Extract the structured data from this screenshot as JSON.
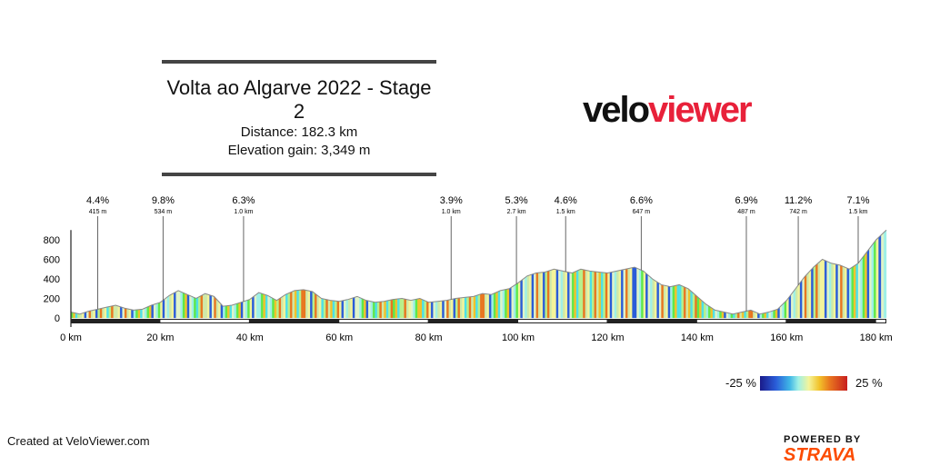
{
  "header": {
    "title": "Volta ao Algarve 2022 - Stage 2",
    "distance": "Distance: 182.3 km",
    "elevation": "Elevation gain: 3,349 m"
  },
  "logo": {
    "part1": "velo",
    "part2": "viewer",
    "accent": "#e8213a"
  },
  "footer": {
    "created": "Created at VeloViewer.com",
    "powered": "POWERED BY",
    "strava": "STRAVA"
  },
  "legend": {
    "min": "-25 %",
    "max": "25 %"
  },
  "chart_data": {
    "type": "area",
    "xlabel": "",
    "ylabel": "",
    "xlim": [
      0,
      182.3
    ],
    "ylim": [
      0,
      900
    ],
    "x_ticks": [
      "0 km",
      "20 km",
      "40 km",
      "60 km",
      "80 km",
      "100 km",
      "120 km",
      "140 km",
      "160 km",
      "180 km"
    ],
    "y_ticks": [
      "0",
      "200",
      "400",
      "600",
      "800"
    ],
    "x": [
      0,
      2,
      4,
      6,
      8,
      10,
      12,
      14,
      16,
      18,
      20,
      22,
      24,
      26,
      28,
      30,
      32,
      34,
      36,
      38,
      40,
      42,
      44,
      46,
      48,
      50,
      52,
      54,
      56,
      58,
      60,
      62,
      64,
      66,
      68,
      70,
      72,
      74,
      76,
      78,
      80,
      82,
      84,
      86,
      88,
      90,
      92,
      94,
      96,
      98,
      100,
      102,
      104,
      106,
      108,
      110,
      112,
      114,
      116,
      118,
      120,
      122,
      124,
      126,
      128,
      130,
      132,
      134,
      136,
      138,
      140,
      142,
      144,
      146,
      148,
      150,
      152,
      154,
      156,
      158,
      160,
      162,
      164,
      166,
      168,
      170,
      172,
      174,
      176,
      178,
      180,
      182.3
    ],
    "elevation_m": [
      60,
      40,
      70,
      90,
      110,
      130,
      100,
      80,
      90,
      130,
      160,
      230,
      280,
      240,
      200,
      250,
      220,
      120,
      130,
      160,
      190,
      260,
      230,
      180,
      240,
      280,
      290,
      270,
      200,
      180,
      170,
      190,
      220,
      180,
      160,
      170,
      190,
      200,
      180,
      200,
      160,
      170,
      180,
      200,
      210,
      220,
      250,
      240,
      280,
      300,
      360,
      430,
      460,
      470,
      500,
      480,
      460,
      500,
      480,
      470,
      460,
      480,
      500,
      520,
      480,
      400,
      340,
      320,
      340,
      300,
      220,
      140,
      80,
      60,
      40,
      60,
      80,
      40,
      60,
      90,
      180,
      300,
      420,
      520,
      600,
      560,
      540,
      500,
      560,
      680,
      800,
      900
    ],
    "climbs": [
      {
        "x": 6,
        "gradient": "4.4%",
        "length": "415 m"
      },
      {
        "x": 20.6,
        "gradient": "9.8%",
        "length": "534 m"
      },
      {
        "x": 38.6,
        "gradient": "6.3%",
        "length": "1.0 km"
      },
      {
        "x": 85,
        "gradient": "3.9%",
        "length": "1.0 km"
      },
      {
        "x": 99.6,
        "gradient": "5.3%",
        "length": "2.7 km"
      },
      {
        "x": 110.6,
        "gradient": "4.6%",
        "length": "1.5 km"
      },
      {
        "x": 127.5,
        "gradient": "6.6%",
        "length": "647 m"
      },
      {
        "x": 151,
        "gradient": "6.9%",
        "length": "487 m"
      },
      {
        "x": 162.6,
        "gradient": "11.2%",
        "length": "742 m"
      },
      {
        "x": 176,
        "gradient": "7.1%",
        "length": "1.5 km"
      }
    ],
    "gradient_palette": [
      "#5ee84a",
      "#b8f08a",
      "#f4f49a",
      "#9ff0e6",
      "#4de0e8",
      "#cfe9a8",
      "#e0f4c8",
      "#f2c22a",
      "#e8761f",
      "#2a5cd8"
    ]
  }
}
